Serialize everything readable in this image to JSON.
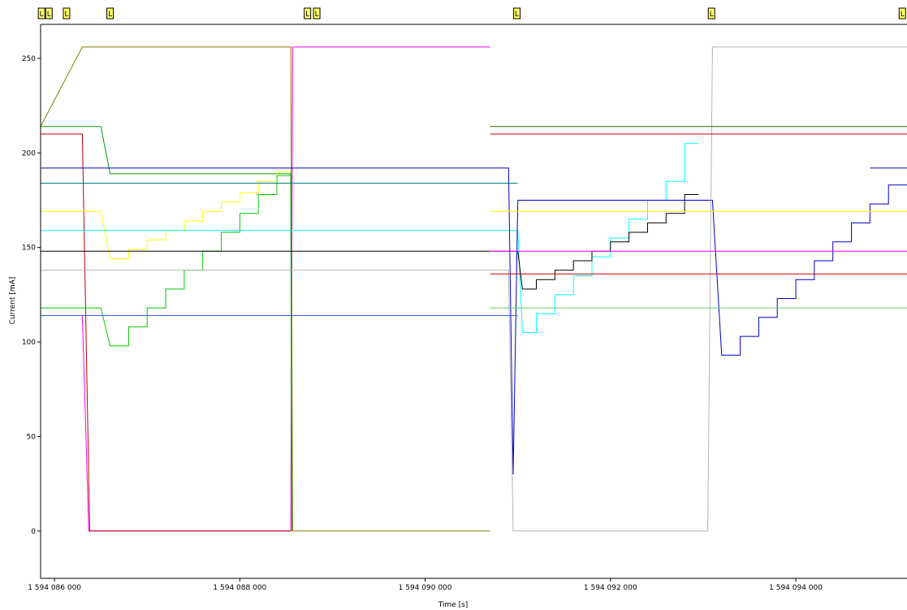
{
  "chart_data": {
    "type": "line",
    "xlabel": "Time [s]",
    "ylabel": "Current [mA]",
    "xlim": [
      1594085850,
      1594095200
    ],
    "ylim": [
      -25,
      268
    ],
    "xticks": [
      1594086000,
      1594088000,
      1594090000,
      1594092000,
      1594094000
    ],
    "xtick_labels": [
      "1 594 086 000",
      "1 594 088 000",
      "1 594 090 000",
      "1 594 092 000",
      "1 594 094 000"
    ],
    "yticks": [
      0,
      50,
      100,
      150,
      200,
      250
    ],
    "ytick_labels": [
      "0",
      "50",
      "100",
      "150",
      "200",
      "250"
    ],
    "grid": false,
    "markers": {
      "label": "L",
      "x": [
        1594085860,
        1594085940,
        1594086130,
        1594086600,
        1594088730,
        1594088830,
        1594090990,
        1594093090,
        1594095150
      ]
    },
    "series": [
      {
        "color": "#ff00ff",
        "points": [
          [
            1594085850,
            114
          ],
          [
            1594086300,
            114
          ],
          [
            1594086370,
            0
          ],
          [
            1594088550,
            0
          ],
          [
            1594088570,
            256
          ],
          [
            1594090700,
            256
          ]
        ]
      },
      {
        "color": "#c00000",
        "points": [
          [
            1594085850,
            210
          ],
          [
            1594086300,
            210
          ],
          [
            1594086380,
            0
          ],
          [
            1594088550,
            0
          ]
        ]
      },
      {
        "color": "#808000",
        "points": [
          [
            1594085850,
            214
          ],
          [
            1594086300,
            256
          ],
          [
            1594088550,
            256
          ],
          [
            1594088570,
            0
          ],
          [
            1594090700,
            0
          ]
        ]
      },
      {
        "color": "#009900",
        "points": [
          [
            1594085850,
            214
          ],
          [
            1594086500,
            214
          ],
          [
            1594086600,
            189
          ],
          [
            1594088550,
            189
          ],
          [
            1594088560,
            0
          ]
        ]
      },
      {
        "color": "#ffff00",
        "points": [
          [
            1594085850,
            169
          ],
          [
            1594086500,
            169
          ],
          [
            1594086600,
            144
          ],
          [
            1594086800,
            144
          ],
          [
            1594086800,
            149
          ],
          [
            1594087000,
            149
          ],
          [
            1594087000,
            154
          ],
          [
            1594087200,
            154
          ],
          [
            1594087200,
            159
          ],
          [
            1594087400,
            159
          ],
          [
            1594087400,
            164
          ],
          [
            1594087600,
            164
          ],
          [
            1594087600,
            169
          ],
          [
            1594087800,
            169
          ],
          [
            1594087800,
            174
          ],
          [
            1594088000,
            174
          ],
          [
            1594088000,
            179
          ],
          [
            1594088200,
            179
          ],
          [
            1594088200,
            185
          ],
          [
            1594088400,
            185
          ],
          [
            1594088400,
            190
          ],
          [
            1594088550,
            190
          ]
        ]
      },
      {
        "color": "#00cc00",
        "points": [
          [
            1594085850,
            118
          ],
          [
            1594086500,
            118
          ],
          [
            1594086600,
            98
          ],
          [
            1594086800,
            98
          ],
          [
            1594086800,
            108
          ],
          [
            1594087000,
            108
          ],
          [
            1594087000,
            118
          ],
          [
            1594087200,
            118
          ],
          [
            1594087200,
            128
          ],
          [
            1594087400,
            128
          ],
          [
            1594087400,
            138
          ],
          [
            1594087600,
            138
          ],
          [
            1594087600,
            148
          ],
          [
            1594087800,
            148
          ],
          [
            1594087800,
            158
          ],
          [
            1594088000,
            158
          ],
          [
            1594088000,
            168
          ],
          [
            1594088200,
            168
          ],
          [
            1594088200,
            178
          ],
          [
            1594088400,
            178
          ],
          [
            1594088400,
            188
          ],
          [
            1594088550,
            188
          ]
        ]
      },
      {
        "color": "#00ffff",
        "points": [
          [
            1594085850,
            159
          ],
          [
            1594091000,
            159
          ],
          [
            1594091050,
            105
          ],
          [
            1594091200,
            105
          ],
          [
            1594091200,
            115
          ],
          [
            1594091400,
            115
          ],
          [
            1594091400,
            125
          ],
          [
            1594091600,
            125
          ],
          [
            1594091600,
            135
          ],
          [
            1594091800,
            135
          ],
          [
            1594091800,
            145
          ],
          [
            1594092000,
            145
          ],
          [
            1594092000,
            155
          ],
          [
            1594092200,
            155
          ],
          [
            1594092200,
            165
          ],
          [
            1594092400,
            165
          ],
          [
            1594092400,
            175
          ],
          [
            1594092600,
            175
          ],
          [
            1594092600,
            185
          ],
          [
            1594092800,
            185
          ],
          [
            1594092800,
            205
          ],
          [
            1594092950,
            205
          ]
        ]
      },
      {
        "color": "#000000",
        "points": [
          [
            1594085850,
            148
          ],
          [
            1594091000,
            148
          ],
          [
            1594091050,
            128
          ],
          [
            1594091200,
            128
          ],
          [
            1594091200,
            133
          ],
          [
            1594091400,
            133
          ],
          [
            1594091400,
            138
          ],
          [
            1594091600,
            138
          ],
          [
            1594091600,
            143
          ],
          [
            1594091800,
            143
          ],
          [
            1594091800,
            148
          ],
          [
            1594092000,
            148
          ],
          [
            1594092000,
            153
          ],
          [
            1594092200,
            153
          ],
          [
            1594092200,
            158
          ],
          [
            1594092400,
            158
          ],
          [
            1594092400,
            163
          ],
          [
            1594092600,
            163
          ],
          [
            1594092600,
            168
          ],
          [
            1594092800,
            168
          ],
          [
            1594092800,
            178
          ],
          [
            1594092950,
            178
          ]
        ]
      },
      {
        "color": "#0000cc",
        "points": [
          [
            1594085850,
            192
          ],
          [
            1594090900,
            192
          ],
          [
            1594090950,
            30
          ],
          [
            1594091000,
            175
          ],
          [
            1594093100,
            175
          ],
          [
            1594093200,
            93
          ],
          [
            1594093400,
            93
          ],
          [
            1594093400,
            103
          ],
          [
            1594093600,
            103
          ],
          [
            1594093600,
            113
          ],
          [
            1594093800,
            113
          ],
          [
            1594093800,
            123
          ],
          [
            1594094000,
            123
          ],
          [
            1594094000,
            133
          ],
          [
            1594094200,
            133
          ],
          [
            1594094200,
            143
          ],
          [
            1594094400,
            143
          ],
          [
            1594094400,
            153
          ],
          [
            1594094600,
            153
          ],
          [
            1594094600,
            163
          ],
          [
            1594094800,
            163
          ],
          [
            1594094800,
            173
          ],
          [
            1594095000,
            173
          ],
          [
            1594095000,
            183
          ],
          [
            1594095200,
            183
          ]
        ]
      },
      {
        "color": "#b4b4b4",
        "points": [
          [
            1594085850,
            138
          ],
          [
            1594090900,
            138
          ],
          [
            1594090950,
            0
          ],
          [
            1594093050,
            0
          ],
          [
            1594093100,
            256
          ],
          [
            1594095200,
            256
          ]
        ]
      },
      {
        "color": "#3366cc",
        "points": [
          [
            1594085850,
            114
          ],
          [
            1594091000,
            114
          ]
        ]
      },
      {
        "color": "#007f7f",
        "points": [
          [
            1594085850,
            184
          ],
          [
            1594091000,
            184
          ]
        ]
      },
      {
        "color": "#336600",
        "points": [
          [
            1594090700,
            214
          ],
          [
            1594095200,
            214
          ]
        ]
      },
      {
        "color": "#c00000",
        "points": [
          [
            1594090700,
            210
          ],
          [
            1594095200,
            210
          ]
        ]
      },
      {
        "color": "#ffff00",
        "points": [
          [
            1594090700,
            169
          ],
          [
            1594095200,
            169
          ]
        ]
      },
      {
        "color": "#ff00ff",
        "points": [
          [
            1594090700,
            148
          ],
          [
            1594095200,
            148
          ]
        ]
      },
      {
        "color": "#cc0000",
        "points": [
          [
            1594090700,
            136
          ],
          [
            1594095200,
            136
          ]
        ]
      },
      {
        "color": "#66cc66",
        "points": [
          [
            1594090700,
            118
          ],
          [
            1594095200,
            118
          ]
        ]
      },
      {
        "color": "#0000cc",
        "points": [
          [
            1594094800,
            192
          ],
          [
            1594095200,
            192
          ]
        ]
      }
    ]
  }
}
